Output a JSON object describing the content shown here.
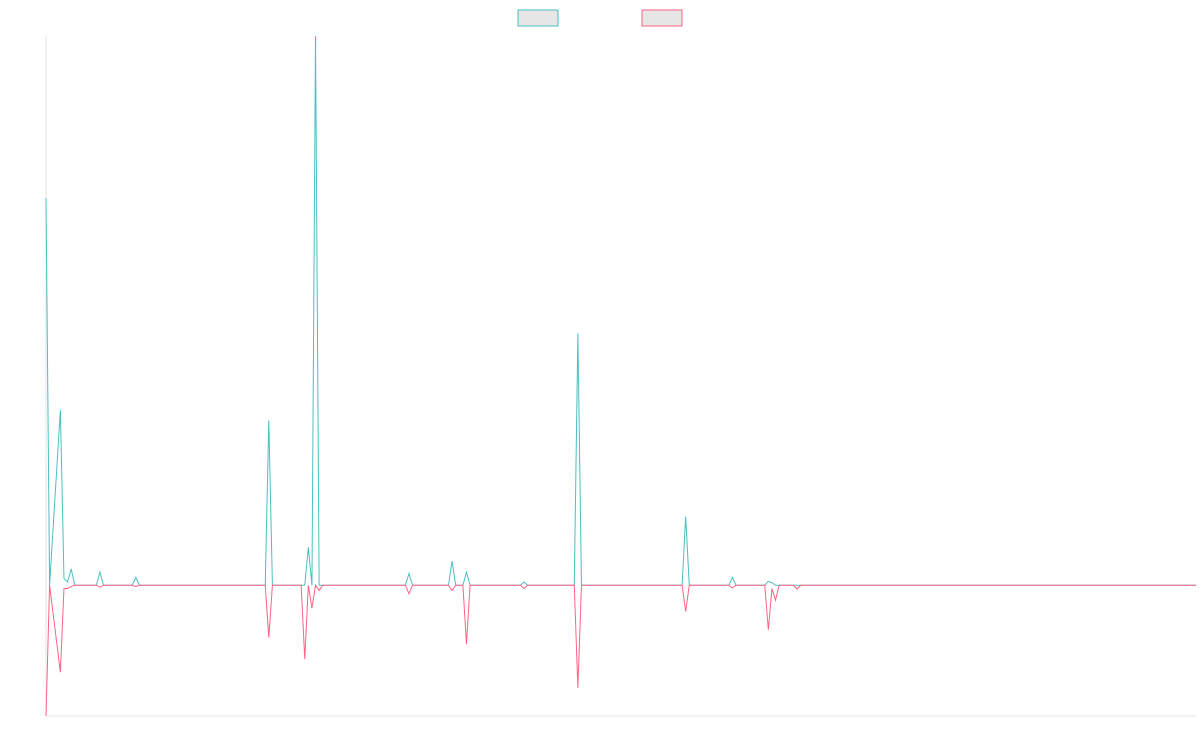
{
  "chart_data": {
    "type": "line",
    "title": "",
    "xlabel": "",
    "ylabel": "",
    "grid": false,
    "legend_position": "top-center",
    "x_count": 320,
    "ylim": [
      -200,
      840
    ],
    "baseline": 0,
    "series": [
      {
        "color": "#4bc0c0",
        "fill": "#e6e6e6",
        "points": [
          [
            0,
            592
          ],
          [
            1,
            0
          ],
          [
            4,
            268
          ],
          [
            5,
            10
          ],
          [
            6,
            5
          ],
          [
            7,
            25
          ],
          [
            8,
            0
          ],
          [
            14,
            0
          ],
          [
            15,
            20
          ],
          [
            16,
            0
          ],
          [
            24,
            0
          ],
          [
            25,
            12
          ],
          [
            26,
            0
          ],
          [
            61,
            0
          ],
          [
            62,
            252
          ],
          [
            63,
            0
          ],
          [
            72,
            0
          ],
          [
            73,
            58
          ],
          [
            74,
            0
          ],
          [
            75,
            840
          ],
          [
            76,
            0
          ],
          [
            77,
            0
          ],
          [
            100,
            0
          ],
          [
            101,
            18
          ],
          [
            102,
            0
          ],
          [
            105,
            0
          ],
          [
            112,
            0
          ],
          [
            113,
            37
          ],
          [
            114,
            0
          ],
          [
            116,
            0
          ],
          [
            117,
            20
          ],
          [
            118,
            0
          ],
          [
            132,
            0
          ],
          [
            133,
            5
          ],
          [
            134,
            0
          ],
          [
            147,
            0
          ],
          [
            148,
            385
          ],
          [
            149,
            0
          ],
          [
            177,
            0
          ],
          [
            178,
            105
          ],
          [
            179,
            0
          ],
          [
            190,
            0
          ],
          [
            191,
            12
          ],
          [
            192,
            0
          ],
          [
            200,
            0
          ],
          [
            201,
            6
          ],
          [
            202,
            4
          ],
          [
            203,
            0
          ],
          [
            320,
            0
          ]
        ]
      },
      {
        "color": "#ff6384",
        "fill": "#e6e6e6",
        "points": [
          [
            0,
            -200
          ],
          [
            1,
            0
          ],
          [
            4,
            -133
          ],
          [
            5,
            -5
          ],
          [
            6,
            -5
          ],
          [
            7,
            -2
          ],
          [
            8,
            0
          ],
          [
            14,
            0
          ],
          [
            15,
            -3
          ],
          [
            16,
            0
          ],
          [
            24,
            0
          ],
          [
            25,
            -2
          ],
          [
            26,
            0
          ],
          [
            61,
            0
          ],
          [
            62,
            -80
          ],
          [
            63,
            0
          ],
          [
            71,
            0
          ],
          [
            72,
            -113
          ],
          [
            73,
            0
          ],
          [
            74,
            -35
          ],
          [
            75,
            0
          ],
          [
            76,
            -8
          ],
          [
            77,
            0
          ],
          [
            100,
            0
          ],
          [
            101,
            -13
          ],
          [
            102,
            0
          ],
          [
            105,
            0
          ],
          [
            112,
            0
          ],
          [
            113,
            -8
          ],
          [
            114,
            0
          ],
          [
            116,
            0
          ],
          [
            117,
            -90
          ],
          [
            118,
            0
          ],
          [
            132,
            0
          ],
          [
            133,
            -5
          ],
          [
            134,
            0
          ],
          [
            147,
            0
          ],
          [
            148,
            -157
          ],
          [
            149,
            0
          ],
          [
            177,
            0
          ],
          [
            178,
            -40
          ],
          [
            179,
            0
          ],
          [
            190,
            0
          ],
          [
            191,
            -4
          ],
          [
            192,
            0
          ],
          [
            200,
            0
          ],
          [
            201,
            -68
          ],
          [
            202,
            -5
          ],
          [
            203,
            -23
          ],
          [
            204,
            0
          ],
          [
            208,
            0
          ],
          [
            209,
            -6
          ],
          [
            210,
            0
          ],
          [
            320,
            0
          ]
        ]
      }
    ]
  }
}
